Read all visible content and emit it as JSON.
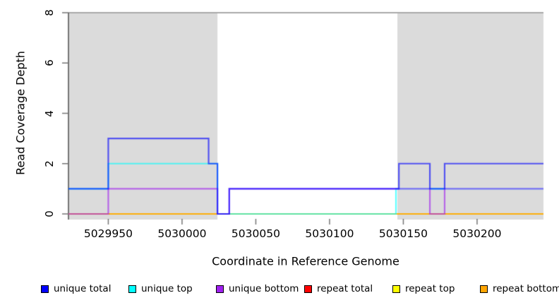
{
  "chart_data": {
    "type": "line",
    "subtype": "step-coverage",
    "title": "",
    "xlabel": "Coordinate in Reference Genome",
    "ylabel": "Read Coverage Depth",
    "xlim": [
      5029923,
      5030245
    ],
    "ylim": [
      0,
      8
    ],
    "grid": false,
    "legend_position": "bottom",
    "top_reference_line_y": 8,
    "top_reference_line_color": "#8C8C8C",
    "shade_color": "#DBDBDB",
    "axis_color": "#424242",
    "tick_color": "#757575",
    "line_alpha": 0.62,
    "shaded_regions": [
      {
        "from": 5029923,
        "to": 5030024
      },
      {
        "from": 5030146,
        "to": 5030245
      }
    ],
    "x_ticks": [
      {
        "label": "5029950",
        "value": 5029950
      },
      {
        "label": "5030000",
        "value": 5030000
      },
      {
        "label": "5030050",
        "value": 5030050
      },
      {
        "label": "5030100",
        "value": 5030100
      },
      {
        "label": "5030150",
        "value": 5030150
      },
      {
        "label": "5030200",
        "value": 5030200
      }
    ],
    "y_ticks": [
      {
        "label": "0",
        "value": 0
      },
      {
        "label": "2",
        "value": 2
      },
      {
        "label": "4",
        "value": 4
      },
      {
        "label": "6",
        "value": 6
      },
      {
        "label": "8",
        "value": 8
      }
    ],
    "series": [
      {
        "name": "repeat total",
        "color": "#FF0000",
        "steps": [
          [
            5029923,
            0
          ],
          [
            5030245,
            0
          ]
        ]
      },
      {
        "name": "repeat top",
        "color": "#FFFF00",
        "steps": [
          [
            5029923,
            0
          ],
          [
            5030245,
            0
          ]
        ]
      },
      {
        "name": "repeat bottom",
        "color": "#FFA500",
        "steps": [
          [
            5029923,
            0
          ],
          [
            5030245,
            0
          ]
        ]
      },
      {
        "name": "unique top",
        "color": "#00FFFF",
        "steps": [
          [
            5029923,
            1
          ],
          [
            5029950,
            2
          ],
          [
            5030024,
            0
          ],
          [
            5030145,
            1
          ],
          [
            5030245,
            1
          ]
        ]
      },
      {
        "name": "unique bottom",
        "color": "#A020F0",
        "steps": [
          [
            5029923,
            0
          ],
          [
            5029950,
            1
          ],
          [
            5030024,
            0
          ],
          [
            5030032,
            1
          ],
          [
            5030168,
            0
          ],
          [
            5030178,
            1
          ],
          [
            5030245,
            1
          ]
        ]
      },
      {
        "name": "unique total",
        "color": "#0000FF",
        "steps": [
          [
            5029923,
            1
          ],
          [
            5029950,
            3
          ],
          [
            5030018,
            2
          ],
          [
            5030024,
            0
          ],
          [
            5030032,
            1
          ],
          [
            5030147,
            2
          ],
          [
            5030168,
            1
          ],
          [
            5030178,
            2
          ],
          [
            5030245,
            2
          ]
        ]
      }
    ],
    "legend": [
      {
        "label": "unique total",
        "color": "#0000FF"
      },
      {
        "label": "unique top",
        "color": "#00FFFF"
      },
      {
        "label": "unique bottom",
        "color": "#A020F0"
      },
      {
        "label": "repeat total",
        "color": "#FF0000"
      },
      {
        "label": "repeat top",
        "color": "#FFFF00"
      },
      {
        "label": "repeat bottom",
        "color": "#FFA500"
      }
    ]
  }
}
